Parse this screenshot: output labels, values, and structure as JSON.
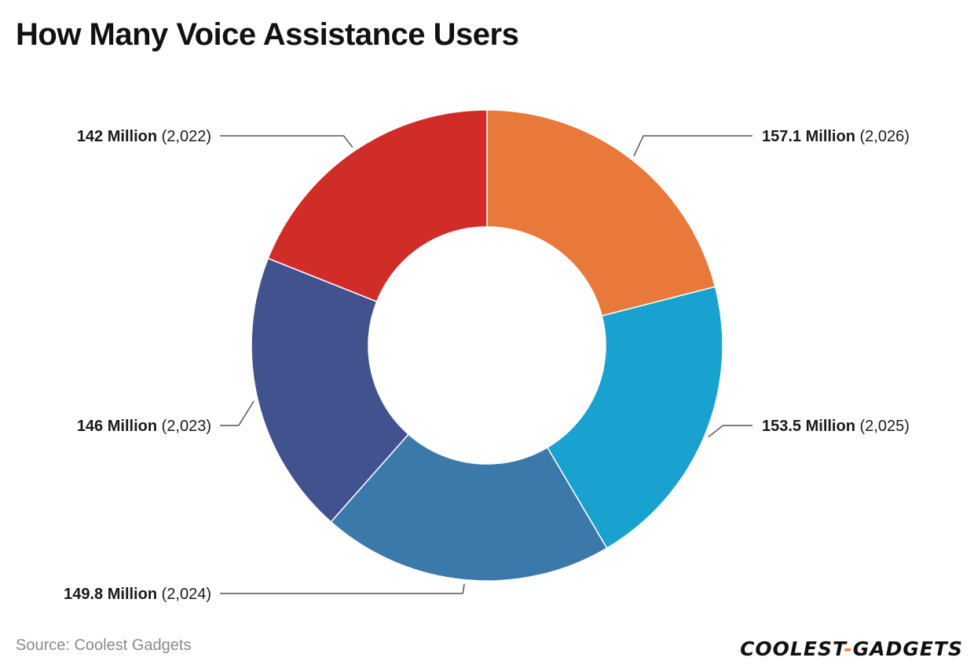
{
  "title": "How Many Voice Assistance Users",
  "source": "Source: Coolest Gadgets",
  "logo": {
    "part1": "COOLEST",
    "sep": "-",
    "part2": "GADGETS"
  },
  "chart_data": {
    "type": "pie",
    "donut": true,
    "unit": "Million",
    "slices": [
      {
        "value": 157.1,
        "value_label": "157.1 Million",
        "year_label": "(2,026)",
        "color": "#e8793a"
      },
      {
        "value": 153.5,
        "value_label": "153.5 Million",
        "year_label": "(2,025)",
        "color": "#19a2cf"
      },
      {
        "value": 149.8,
        "value_label": "149.8 Million",
        "year_label": "(2,024)",
        "color": "#3b79ab"
      },
      {
        "value": 146,
        "value_label": "146 Million",
        "year_label": "(2,023)",
        "color": "#42528f"
      },
      {
        "value": 142,
        "value_label": "142 Million",
        "year_label": "(2,022)",
        "color": "#d12d28"
      }
    ]
  }
}
